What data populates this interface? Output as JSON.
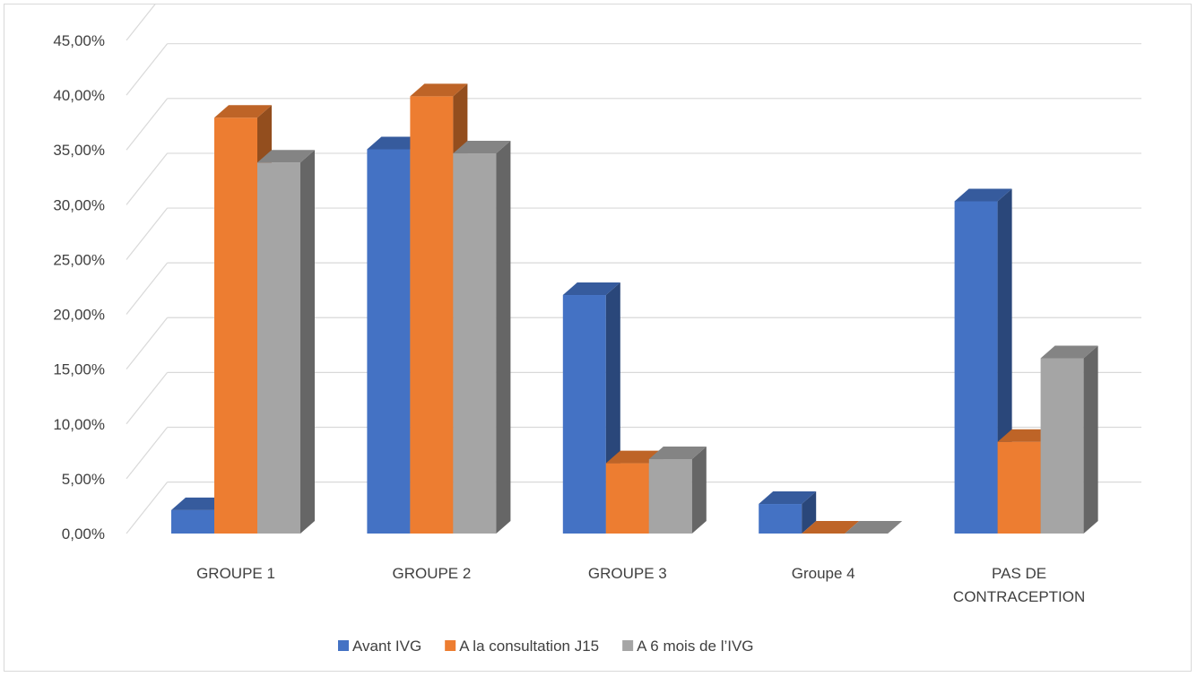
{
  "chart_data": {
    "type": "bar",
    "title": "",
    "xlabel": "",
    "ylabel": "",
    "categories": [
      "GROUPE 1",
      "GROUPE 2",
      "GROUPE 3",
      "Groupe 4",
      "PAS DE CONTRACEPTION"
    ],
    "series": [
      {
        "name": "Avant IVG",
        "color": "#4472C4",
        "values": [
          2.3,
          37.7,
          23.4,
          2.9,
          32.6
        ]
      },
      {
        "name": "A la consultation J15",
        "color": "#ED7D31",
        "values": [
          40.8,
          42.9,
          6.9,
          0.0,
          9.0
        ]
      },
      {
        "name": "A 6 mois de l’IVG",
        "color": "#A5A5A5",
        "values": [
          36.4,
          37.3,
          7.3,
          0.0,
          17.2
        ]
      }
    ],
    "ylim": [
      0,
      45
    ],
    "yticks": [
      "0,00%",
      "5,00%",
      "10,00%",
      "15,00%",
      "20,00%",
      "25,00%",
      "30,00%",
      "35,00%",
      "40,00%",
      "45,00%"
    ],
    "grid": true,
    "legend_position": "bottom",
    "style": "3d-clustered-column"
  }
}
